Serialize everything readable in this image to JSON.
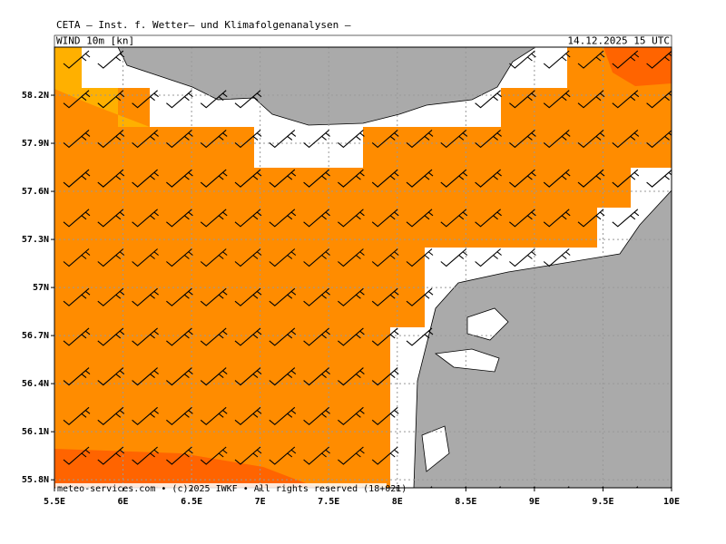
{
  "header": {
    "title": "CETA – Inst. f. Wetter– und Klimafolgenanalysen –",
    "field": "WIND 10m [kn]",
    "valid": "14.12.2025 15 UTC"
  },
  "map": {
    "xlim": [
      5.5,
      10
    ],
    "ylim": [
      55.75,
      58.5
    ],
    "xticks": [
      {
        "value": 5.5,
        "label": "5.5E"
      },
      {
        "value": 6,
        "label": "6E"
      },
      {
        "value": 6.5,
        "label": "6.5E"
      },
      {
        "value": 7,
        "label": "7E"
      },
      {
        "value": 7.5,
        "label": "7.5E"
      },
      {
        "value": 8,
        "label": "8E"
      },
      {
        "value": 8.5,
        "label": "8.5E"
      },
      {
        "value": 9,
        "label": "9E"
      },
      {
        "value": 9.5,
        "label": "9.5E"
      },
      {
        "value": 10,
        "label": "10E"
      }
    ],
    "yticks": [
      {
        "value": 55.8,
        "label": "55.8N"
      },
      {
        "value": 56.1,
        "label": "56.1N"
      },
      {
        "value": 56.4,
        "label": "56.4N"
      },
      {
        "value": 56.7,
        "label": "56.7N"
      },
      {
        "value": 57,
        "label": "57N"
      },
      {
        "value": 57.3,
        "label": "57.3N"
      },
      {
        "value": 57.6,
        "label": "57.6N"
      },
      {
        "value": 57.9,
        "label": "57.9N"
      },
      {
        "value": 58.2,
        "label": "58.2N"
      }
    ]
  },
  "footer": "meteo-services.com • (c)2025 IWKF • All rights reserved (18+021)"
}
